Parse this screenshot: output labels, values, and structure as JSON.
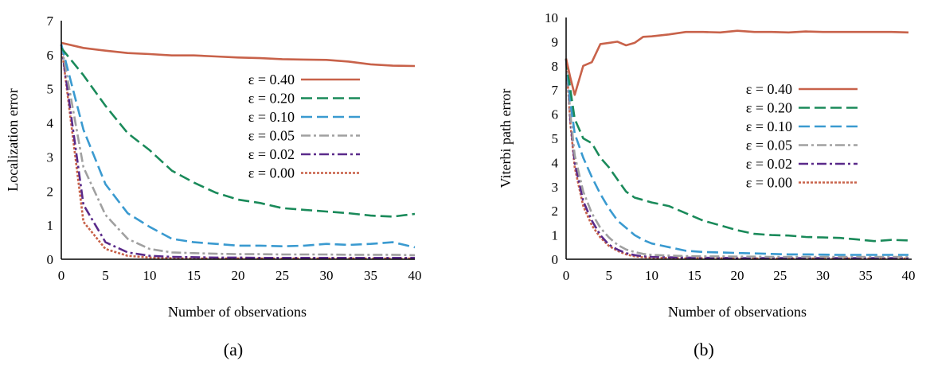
{
  "chart_data": [
    {
      "type": "line",
      "panel_label": "(a)",
      "xlabel": "Number of observations",
      "ylabel": "Localization error",
      "xlim": [
        0,
        40
      ],
      "ylim": [
        0,
        7
      ],
      "xticks": [
        "0",
        "5",
        "10",
        "15",
        "20",
        "25",
        "30",
        "35",
        "40"
      ],
      "yticks": [
        "0",
        "1",
        "2",
        "3",
        "4",
        "5",
        "6",
        "7"
      ],
      "x": [
        0,
        2.5,
        5,
        7.5,
        10,
        12.5,
        15,
        17.5,
        20,
        22.5,
        25,
        27.5,
        30,
        32.5,
        35,
        37.5,
        40
      ],
      "series": [
        {
          "name": "ε = 0.40",
          "color": "#c8624a",
          "dash": "solid",
          "values": [
            6.35,
            6.2,
            6.12,
            6.05,
            6.02,
            5.98,
            5.98,
            5.95,
            5.92,
            5.9,
            5.87,
            5.86,
            5.85,
            5.8,
            5.72,
            5.68,
            5.67
          ]
        },
        {
          "name": "ε = 0.20",
          "color": "#1a8a5a",
          "dash": "long-dash",
          "values": [
            6.2,
            5.4,
            4.5,
            3.7,
            3.2,
            2.6,
            2.25,
            1.95,
            1.75,
            1.65,
            1.5,
            1.45,
            1.4,
            1.35,
            1.28,
            1.25,
            1.33
          ]
        },
        {
          "name": "ε = 0.10",
          "color": "#3a9ad0",
          "dash": "long-dash",
          "values": [
            6.3,
            3.8,
            2.2,
            1.35,
            0.95,
            0.6,
            0.5,
            0.45,
            0.4,
            0.4,
            0.38,
            0.4,
            0.45,
            0.42,
            0.45,
            0.5,
            0.35
          ]
        },
        {
          "name": "ε = 0.05",
          "color": "#a0a0a0",
          "dash": "dash-dot",
          "values": [
            6.3,
            2.7,
            1.3,
            0.6,
            0.3,
            0.2,
            0.18,
            0.16,
            0.15,
            0.15,
            0.14,
            0.14,
            0.14,
            0.13,
            0.13,
            0.13,
            0.12
          ]
        },
        {
          "name": "ε = 0.02",
          "color": "#5a2a8a",
          "dash": "dash-dot",
          "values": [
            6.3,
            1.6,
            0.5,
            0.2,
            0.1,
            0.07,
            0.06,
            0.05,
            0.05,
            0.04,
            0.04,
            0.04,
            0.04,
            0.04,
            0.04,
            0.04,
            0.04
          ]
        },
        {
          "name": "ε = 0.00",
          "color": "#c8624a",
          "dash": "dotted",
          "values": [
            6.3,
            1.1,
            0.3,
            0.1,
            0.05,
            0.03,
            0.02,
            0.02,
            0.02,
            0.02,
            0.02,
            0.02,
            0.02,
            0.02,
            0.02,
            0.02,
            0.02
          ]
        }
      ]
    },
    {
      "type": "line",
      "panel_label": "(b)",
      "xlabel": "Number of observations",
      "ylabel": "Viterbi path error",
      "xlim": [
        0,
        40
      ],
      "ylim": [
        0,
        10
      ],
      "xticks": [
        "0",
        "5",
        "10",
        "15",
        "20",
        "25",
        "30",
        "35",
        "40"
      ],
      "yticks": [
        "0",
        "1",
        "2",
        "3",
        "4",
        "5",
        "6",
        "7",
        "8",
        "9",
        "10"
      ],
      "x": [
        0,
        0.5,
        1,
        2,
        3,
        4,
        5,
        6,
        7,
        8,
        9,
        10,
        12,
        14,
        16,
        18,
        20,
        22,
        24,
        26,
        28,
        30,
        32,
        34,
        36,
        38,
        40
      ],
      "series": [
        {
          "name": "ε = 0.40",
          "color": "#c8624a",
          "dash": "solid",
          "values": [
            8.3,
            7.5,
            6.8,
            8.0,
            8.15,
            8.9,
            8.95,
            9.0,
            8.85,
            8.95,
            9.2,
            9.22,
            9.3,
            9.4,
            9.4,
            9.38,
            9.45,
            9.4,
            9.4,
            9.38,
            9.42,
            9.4,
            9.4,
            9.4,
            9.4,
            9.4,
            9.38
          ]
        },
        {
          "name": "ε = 0.20",
          "color": "#1a8a5a",
          "dash": "long-dash",
          "values": [
            8.3,
            7.0,
            5.8,
            5.0,
            4.8,
            4.2,
            3.8,
            3.3,
            2.8,
            2.55,
            2.45,
            2.35,
            2.2,
            1.9,
            1.6,
            1.4,
            1.2,
            1.05,
            1.0,
            0.98,
            0.92,
            0.9,
            0.88,
            0.82,
            0.75,
            0.8,
            0.78
          ]
        },
        {
          "name": "ε = 0.10",
          "color": "#3a9ad0",
          "dash": "long-dash",
          "values": [
            8.3,
            6.5,
            5.2,
            4.2,
            3.4,
            2.7,
            2.1,
            1.6,
            1.3,
            1.0,
            0.8,
            0.65,
            0.5,
            0.35,
            0.3,
            0.28,
            0.26,
            0.24,
            0.22,
            0.2,
            0.2,
            0.19,
            0.18,
            0.18,
            0.18,
            0.18,
            0.18
          ]
        },
        {
          "name": "ε = 0.05",
          "color": "#a0a0a0",
          "dash": "dash-dot",
          "values": [
            8.3,
            6.0,
            4.3,
            2.8,
            1.9,
            1.3,
            0.9,
            0.6,
            0.4,
            0.3,
            0.22,
            0.18,
            0.15,
            0.13,
            0.12,
            0.12,
            0.11,
            0.11,
            0.1,
            0.1,
            0.1,
            0.1,
            0.1,
            0.1,
            0.1,
            0.1,
            0.1
          ]
        },
        {
          "name": "ε = 0.02",
          "color": "#5a2a8a",
          "dash": "dash-dot",
          "values": [
            8.3,
            5.8,
            4.0,
            2.4,
            1.6,
            1.0,
            0.6,
            0.4,
            0.25,
            0.17,
            0.12,
            0.1,
            0.08,
            0.07,
            0.06,
            0.06,
            0.05,
            0.05,
            0.05,
            0.05,
            0.05,
            0.05,
            0.05,
            0.05,
            0.05,
            0.05,
            0.05
          ]
        },
        {
          "name": "ε = 0.00",
          "color": "#c8624a",
          "dash": "dotted",
          "values": [
            8.3,
            5.6,
            3.8,
            2.2,
            1.4,
            0.9,
            0.55,
            0.35,
            0.2,
            0.12,
            0.08,
            0.06,
            0.05,
            0.04,
            0.04,
            0.04,
            0.03,
            0.03,
            0.03,
            0.03,
            0.03,
            0.03,
            0.03,
            0.03,
            0.03,
            0.03,
            0.03
          ]
        }
      ]
    }
  ]
}
